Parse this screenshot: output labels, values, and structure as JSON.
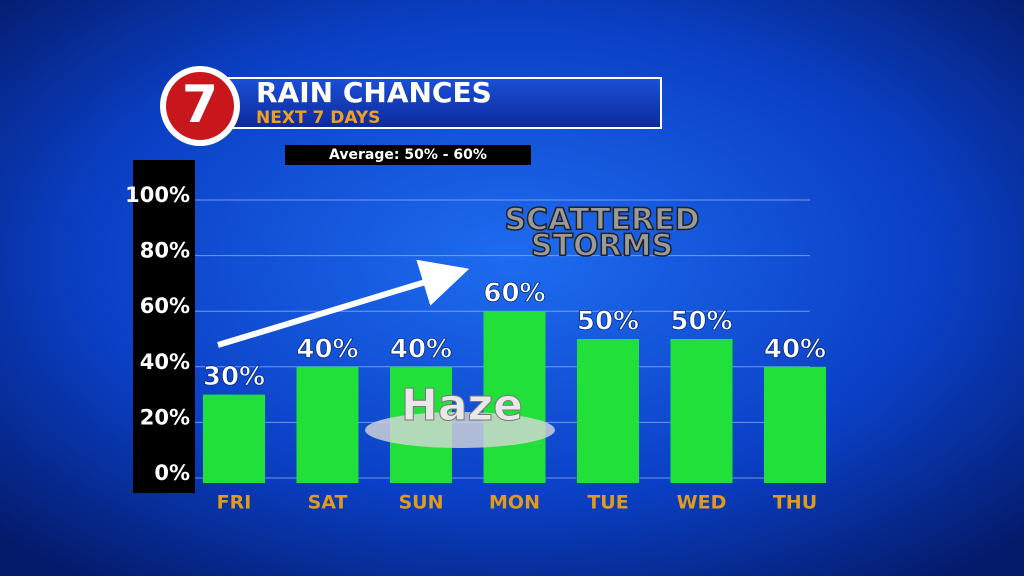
{
  "logo": "7",
  "chart_data": {
    "type": "bar",
    "title": "RAIN CHANCES",
    "subtitle": "NEXT 7 DAYS",
    "annotation": "Average: 50% - 60%",
    "storm_label": [
      "SCATTERED",
      "STORMS"
    ],
    "haze_label": "Haze",
    "categories": [
      "FRI",
      "SAT",
      "SUN",
      "MON",
      "TUE",
      "WED",
      "THU"
    ],
    "values": [
      30,
      40,
      40,
      60,
      50,
      50,
      40
    ],
    "value_labels": [
      "30%",
      "40%",
      "40%",
      "60%",
      "50%",
      "50%",
      "40%"
    ],
    "color": "#22e03a",
    "ylim": [
      0,
      100
    ],
    "yticks": [
      {
        "value": 0,
        "label": "0%"
      },
      {
        "value": 20,
        "label": "20%"
      },
      {
        "value": 40,
        "label": "40%"
      },
      {
        "value": 60,
        "label": "60%"
      },
      {
        "value": 80,
        "label": "80%"
      },
      {
        "value": 100,
        "label": "100%"
      }
    ],
    "grid": true
  }
}
